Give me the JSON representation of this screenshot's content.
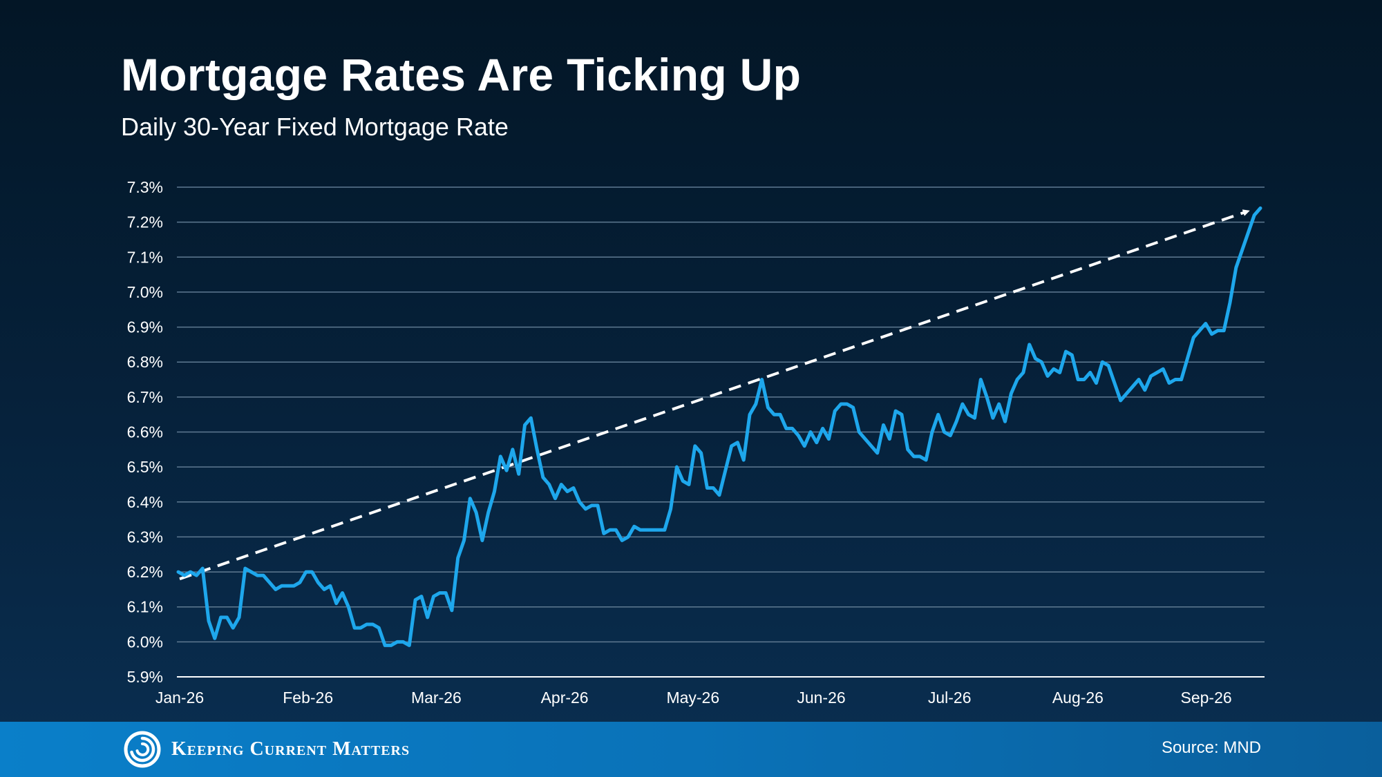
{
  "title": "Mortgage Rates Are Ticking Up",
  "subtitle": "Daily 30-Year Fixed Mortgage Rate",
  "footer": {
    "brand": "Keeping Current Matters",
    "source": "Source: MND"
  },
  "colors": {
    "line": "#1ea7ec",
    "trend": "#ffffff",
    "grid": "#5f7a92",
    "footer_bg": "#0a7fc9"
  },
  "chart_data": {
    "type": "line",
    "title": "Mortgage Rates Are Ticking Up",
    "subtitle": "Daily 30-Year Fixed Mortgage Rate",
    "xlabel": "",
    "ylabel": "",
    "ylim": [
      5.9,
      7.3
    ],
    "grid": true,
    "y_ticks": [
      "7.3%",
      "7.2%",
      "7.1%",
      "7.0%",
      "6.9%",
      "6.8%",
      "6.7%",
      "6.6%",
      "6.5%",
      "6.4%",
      "6.3%",
      "6.2%",
      "6.1%",
      "6.0%",
      "5.9%"
    ],
    "x_ticks": [
      "Jan-26",
      "Feb-26",
      "Mar-26",
      "Apr-26",
      "May-26",
      "Jun-26",
      "Jul-26",
      "Aug-26",
      "Sep-26"
    ],
    "series": [
      {
        "values": [
          6.2,
          6.19,
          6.2,
          6.19,
          6.21,
          6.06,
          6.01,
          6.07,
          6.07,
          6.04,
          6.07,
          6.21,
          6.2,
          6.19,
          6.19,
          6.17,
          6.15,
          6.16,
          6.16,
          6.16,
          6.17,
          6.2,
          6.2,
          6.17,
          6.15,
          6.16,
          6.11,
          6.14,
          6.1,
          6.04,
          6.04,
          6.05,
          6.05,
          6.04,
          5.99,
          5.99,
          6.0,
          6.0,
          5.99,
          6.12,
          6.13,
          6.07,
          6.13,
          6.14,
          6.14,
          6.09,
          6.24,
          6.29,
          6.41,
          6.37,
          6.29,
          6.37,
          6.43,
          6.53,
          6.49,
          6.55,
          6.48,
          6.62,
          6.64,
          6.55,
          6.47,
          6.45,
          6.41,
          6.45,
          6.43,
          6.44,
          6.4,
          6.38,
          6.39,
          6.39,
          6.31,
          6.32,
          6.32,
          6.29,
          6.3,
          6.33,
          6.32,
          6.32,
          6.32,
          6.32,
          6.32,
          6.38,
          6.5,
          6.46,
          6.45,
          6.56,
          6.54,
          6.44,
          6.44,
          6.42,
          6.49,
          6.56,
          6.57,
          6.52,
          6.65,
          6.68,
          6.75,
          6.67,
          6.65,
          6.65,
          6.61,
          6.61,
          6.59,
          6.56,
          6.6,
          6.57,
          6.61,
          6.58,
          6.66,
          6.68,
          6.68,
          6.67,
          6.6,
          6.58,
          6.56,
          6.54,
          6.62,
          6.58,
          6.66,
          6.65,
          6.55,
          6.53,
          6.53,
          6.52,
          6.6,
          6.65,
          6.6,
          6.59,
          6.63,
          6.68,
          6.65,
          6.64,
          6.75,
          6.7,
          6.64,
          6.68,
          6.63,
          6.71,
          6.75,
          6.77,
          6.85,
          6.81,
          6.8,
          6.76,
          6.78,
          6.77,
          6.83,
          6.82,
          6.75,
          6.75,
          6.77,
          6.74,
          6.8,
          6.79,
          6.74,
          6.69,
          6.71,
          6.73,
          6.75,
          6.72,
          6.76,
          6.77,
          6.78,
          6.74,
          6.75,
          6.75,
          6.81,
          6.87,
          6.89,
          6.91,
          6.88,
          6.89,
          6.89,
          6.97,
          7.07,
          7.12,
          7.17,
          7.22,
          7.24
        ]
      }
    ],
    "trend": {
      "style": "dashed-arrow",
      "start": 6.18,
      "end": 7.23
    }
  }
}
